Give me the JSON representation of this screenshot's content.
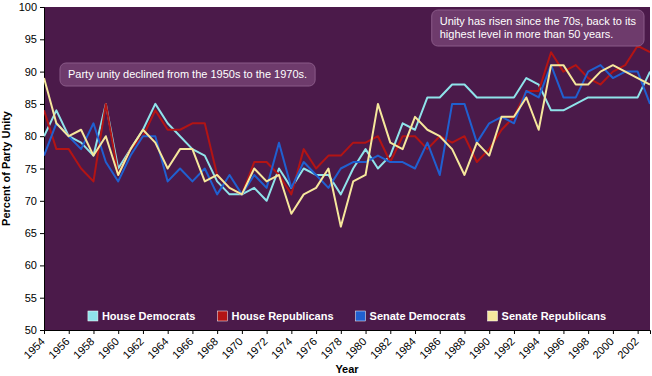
{
  "chart_data": {
    "type": "line",
    "x_label": "Year",
    "y_label": "Percent of Party Unity",
    "annotations": [
      [
        "Party unity declined from the 1950s to the 1970s."
      ],
      [
        "Unity has risen since the 70s, back to its",
        "highest level in more than 50 years."
      ]
    ],
    "x": [
      1954,
      1955,
      1956,
      1957,
      1958,
      1959,
      1960,
      1961,
      1962,
      1963,
      1964,
      1965,
      1966,
      1967,
      1968,
      1969,
      1970,
      1971,
      1972,
      1973,
      1974,
      1975,
      1976,
      1977,
      1978,
      1979,
      1980,
      1981,
      1982,
      1983,
      1984,
      1985,
      1986,
      1987,
      1988,
      1989,
      1990,
      1991,
      1992,
      1993,
      1994,
      1995,
      1996,
      1997,
      1998,
      1999,
      2000,
      2001,
      2002,
      2003
    ],
    "series": [
      {
        "name": "House Democrats",
        "color": "#8fe3ea",
        "values": [
          80,
          84,
          80,
          79,
          77,
          85,
          75,
          78,
          81,
          85,
          82,
          80,
          78,
          77,
          73,
          71,
          71,
          72,
          70,
          75,
          72,
          75,
          74,
          74,
          71,
          75,
          78,
          75,
          77,
          82,
          81,
          86,
          86,
          88,
          88,
          86,
          86,
          86,
          86,
          89,
          88,
          84,
          84,
          85,
          86,
          86,
          86,
          86,
          86,
          90
        ]
      },
      {
        "name": "House Republicans",
        "color": "#b31414",
        "values": [
          84,
          78,
          78,
          75,
          73,
          85,
          74,
          78,
          80,
          84,
          81,
          81,
          82,
          82,
          74,
          72,
          71,
          76,
          76,
          74,
          71,
          78,
          75,
          77,
          77,
          79,
          79,
          80,
          76,
          80,
          80,
          78,
          80,
          79,
          80,
          76,
          78,
          81,
          83,
          87,
          87,
          93,
          90,
          91,
          89,
          88,
          90,
          91,
          94,
          93
        ]
      },
      {
        "name": "Senate Democrats",
        "color": "#2060d0",
        "values": [
          77,
          82,
          80,
          78,
          82,
          76,
          73,
          77,
          80,
          80,
          73,
          75,
          73,
          75,
          71,
          74,
          71,
          74,
          72,
          79,
          72,
          76,
          74,
          72,
          75,
          76,
          76,
          77,
          76,
          76,
          75,
          79,
          74,
          85,
          85,
          79,
          82,
          83,
          82,
          87,
          86,
          91,
          86,
          86,
          90,
          91,
          89,
          90,
          90,
          85
        ]
      },
      {
        "name": "Senate Republicans",
        "color": "#f6e79c",
        "values": [
          89,
          82,
          80,
          81,
          77,
          80,
          74,
          78,
          81,
          79,
          75,
          78,
          78,
          73,
          74,
          72,
          71,
          75,
          73,
          74,
          68,
          71,
          72,
          75,
          66,
          73,
          74,
          85,
          79,
          78,
          83,
          81,
          80,
          78,
          74,
          79,
          77,
          83,
          83,
          86,
          81,
          91,
          91,
          88,
          88,
          90,
          91,
          90,
          89,
          88
        ]
      }
    ],
    "xlim": [
      1954,
      2003
    ],
    "xticks": [
      1954,
      1956,
      1958,
      1960,
      1962,
      1964,
      1966,
      1968,
      1970,
      1972,
      1974,
      1976,
      1978,
      1980,
      1982,
      1984,
      1986,
      1988,
      1990,
      1992,
      1994,
      1996,
      1998,
      2000,
      2002
    ],
    "ylim": [
      50,
      100
    ],
    "yticks": [
      50,
      55,
      60,
      65,
      70,
      75,
      80,
      85,
      90,
      95,
      100
    ],
    "grid": false,
    "legend": "bottom"
  }
}
